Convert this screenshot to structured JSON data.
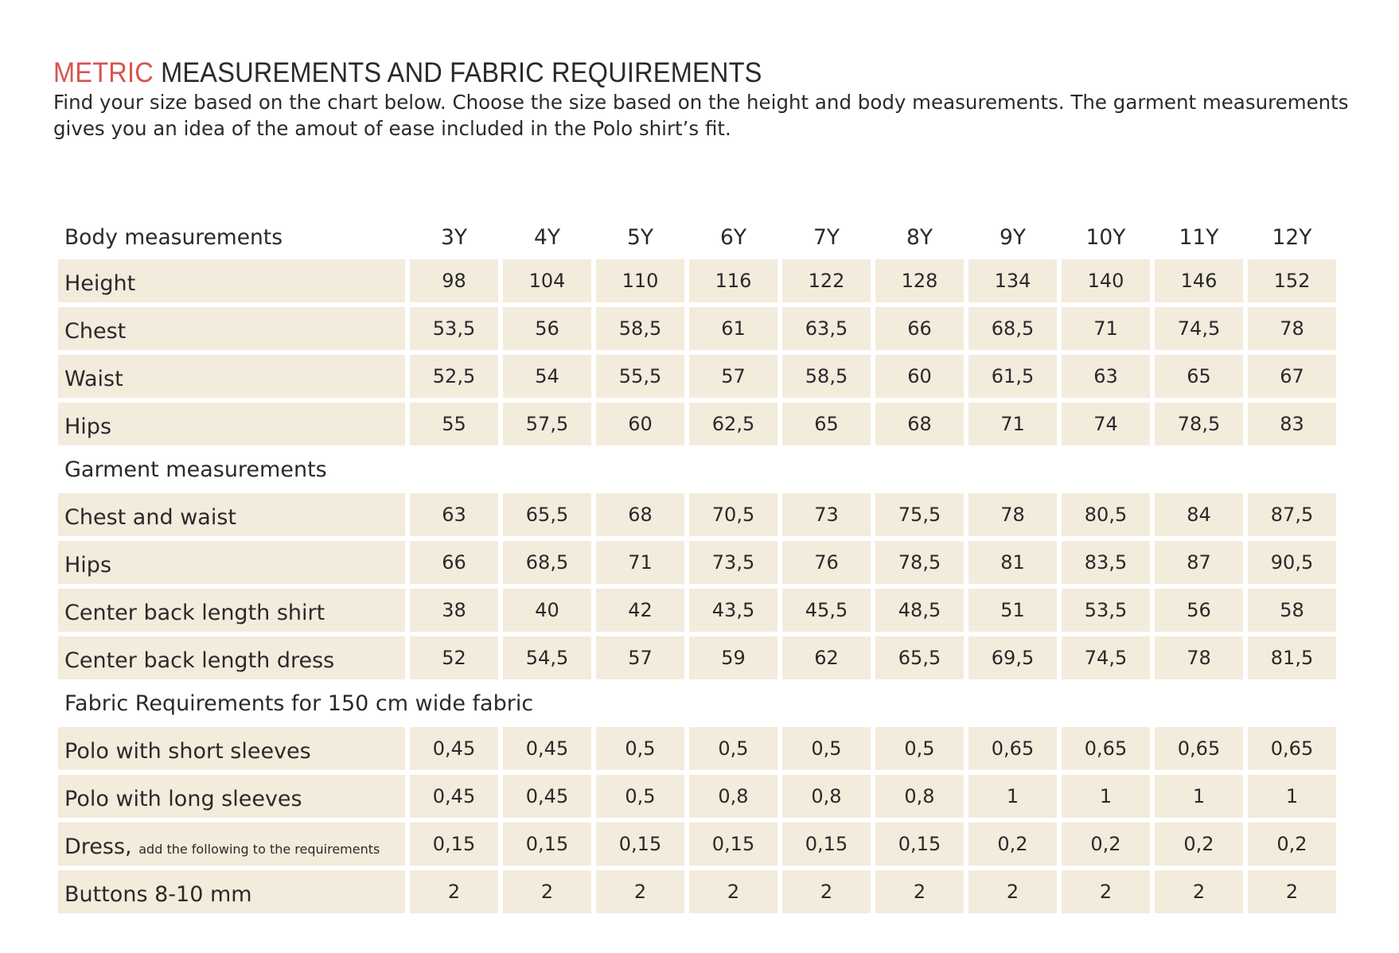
{
  "title": {
    "accent": "METRIC",
    "rest": " MEASUREMENTS AND FABRIC REQUIREMENTS"
  },
  "intro": "Find your size based on the chart below. Choose the size based on the height and body measurements. The garment measurements gives you an idea of the amout of ease included in the Polo shirt’s fit.",
  "table": {
    "header_label": "Body measurements",
    "sizes": [
      "3Y",
      "4Y",
      "5Y",
      "6Y",
      "7Y",
      "8Y",
      "9Y",
      "10Y",
      "11Y",
      "12Y"
    ],
    "body_rows": [
      {
        "label": "Height",
        "values": [
          "98",
          "104",
          "110",
          "116",
          "122",
          "128",
          "134",
          "140",
          "146",
          "152"
        ]
      },
      {
        "label": "Chest",
        "values": [
          "53,5",
          "56",
          "58,5",
          "61",
          "63,5",
          "66",
          "68,5",
          "71",
          "74,5",
          "78"
        ]
      },
      {
        "label": "Waist",
        "values": [
          "52,5",
          "54",
          "55,5",
          "57",
          "58,5",
          "60",
          "61,5",
          "63",
          "65",
          "67"
        ]
      },
      {
        "label": "Hips",
        "values": [
          "55",
          "57,5",
          "60",
          "62,5",
          "65",
          "68",
          "71",
          "74",
          "78,5",
          "83"
        ]
      }
    ],
    "garment_section": "Garment measurements",
    "garment_rows": [
      {
        "label": "Chest and waist",
        "values": [
          "63",
          "65,5",
          "68",
          "70,5",
          "73",
          "75,5",
          "78",
          "80,5",
          "84",
          "87,5"
        ]
      },
      {
        "label": "Hips",
        "values": [
          "66",
          "68,5",
          "71",
          "73,5",
          "76",
          "78,5",
          "81",
          "83,5",
          "87",
          "90,5"
        ]
      },
      {
        "label": "Center back length shirt",
        "values": [
          "38",
          "40",
          "42",
          "43,5",
          "45,5",
          "48,5",
          "51",
          "53,5",
          "56",
          "58"
        ]
      },
      {
        "label": "Center back length dress",
        "values": [
          "52",
          "54,5",
          "57",
          "59",
          "62",
          "65,5",
          "69,5",
          "74,5",
          "78",
          "81,5"
        ]
      }
    ],
    "fabric_section": "Fabric Requirements for 150 cm wide fabric",
    "fabric_rows": [
      {
        "label": "Polo with short sleeves",
        "values": [
          "0,45",
          "0,45",
          "0,5",
          "0,5",
          "0,5",
          "0,5",
          "0,65",
          "0,65",
          "0,65",
          "0,65"
        ]
      },
      {
        "label": "Polo with long sleeves",
        "values": [
          "0,45",
          "0,45",
          "0,5",
          "0,8",
          "0,8",
          "0,8",
          "1",
          "1",
          "1",
          "1"
        ]
      },
      {
        "label": "Dress,",
        "note": "add the following to the requirements",
        "values": [
          "0,15",
          "0,15",
          "0,15",
          "0,15",
          "0,15",
          "0,15",
          "0,2",
          "0,2",
          "0,2",
          "0,2"
        ]
      },
      {
        "label": "Buttons 8-10 mm",
        "values": [
          "2",
          "2",
          "2",
          "2",
          "2",
          "2",
          "2",
          "2",
          "2",
          "2"
        ]
      }
    ]
  },
  "colors": {
    "accent": "#d9534f",
    "cell_background": "#f3ebdc",
    "text": "#2a2a2a"
  }
}
